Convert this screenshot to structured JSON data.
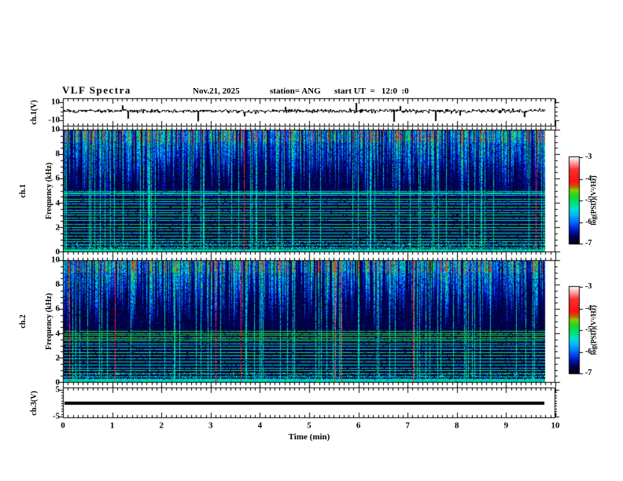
{
  "header": {
    "title": "VLF Spectra",
    "date": "Nov.21, 2025",
    "station": "station= ANG",
    "start_ut": "start UT  =   12:0  :0"
  },
  "x_axis": {
    "title": "Time (min)",
    "tick_labels": [
      "0",
      "1",
      "2",
      "3",
      "4",
      "5",
      "6",
      "7",
      "8",
      "9",
      "10"
    ]
  },
  "panels": {
    "ch1": {
      "label": "ch.1(V)",
      "tick_labels": [
        "10",
        "-10"
      ]
    },
    "spec1": {
      "label_channel": "ch.1",
      "label_axis": "Frequency (kHz)",
      "tick_labels": [
        "10",
        "8",
        "6",
        "4",
        "2",
        "0"
      ]
    },
    "spec2": {
      "label_channel": "ch.2",
      "label_axis": "Frequency (kHz)",
      "tick_labels": [
        "10",
        "8",
        "6",
        "4",
        "2",
        "0"
      ]
    },
    "ch3": {
      "label": "ch.3(V)",
      "tick_labels": [
        "5",
        "-5"
      ]
    }
  },
  "colorbar": {
    "label": "log(PSD)(V²/Hz)",
    "tick_labels": [
      "-3",
      "-4",
      "-5",
      "-6",
      "-7"
    ],
    "range": [
      -7,
      -3
    ],
    "positions": [
      0,
      0.08,
      0.16,
      0.24,
      0.33,
      0.4,
      0.48,
      0.56,
      0.62,
      0.66,
      0.72,
      0.86,
      0.93,
      1.0
    ],
    "colors": [
      "#000010",
      "#000050",
      "#0018c8",
      "#0060ff",
      "#00b4ff",
      "#00e0d0",
      "#00e060",
      "#20d820",
      "#88cc00",
      "#d05800",
      "#ff1010",
      "#ff3030",
      "#ff9aa0",
      "#ffffff"
    ]
  },
  "chart_data": [
    {
      "type": "line",
      "name": "ch.1 raw signal",
      "ylabel": "ch.1(V)",
      "y_ticks": [
        10,
        -10
      ],
      "x_range_min": [
        0,
        10
      ],
      "data_end_min": 9.8,
      "description": "noisy waveform trace centered on 0 V with sparse impulsive spikes of a few volts"
    },
    {
      "type": "heatmap",
      "name": "ch.1 spectrogram",
      "ylabel": "Frequency (kHz)",
      "y_range_khz": [
        0,
        10
      ],
      "x_range_min": [
        0,
        10
      ],
      "data_end_min": 9.8,
      "colorbar": {
        "label": "log(PSD)(V²/Hz)",
        "range": [
          -7,
          -3
        ],
        "tick_values": [
          -3,
          -4,
          -5,
          -6,
          -7
        ]
      },
      "features": {
        "impulsive_streaks": "dense vertical sferic streaks strongest between 5 and 10 kHz, green-yellow cores with occasional full-height red lines",
        "horizontal_lines": [
          {
            "khz": 5.0,
            "v": 0.44
          },
          {
            "khz": 4.9,
            "v": 0.48
          },
          {
            "khz": 4.8,
            "v": 0.44
          },
          {
            "khz": 4.7,
            "v": 0.4
          },
          {
            "khz": 4.35,
            "v": 0.56
          },
          {
            "khz": 4.15,
            "v": 0.42
          },
          {
            "khz": 3.95,
            "v": 0.46
          },
          {
            "khz": 3.7,
            "v": 0.56
          },
          {
            "khz": 3.45,
            "v": 0.42
          },
          {
            "khz": 3.25,
            "v": 0.56
          },
          {
            "khz": 3.05,
            "v": 0.46
          },
          {
            "khz": 2.85,
            "v": 0.56
          },
          {
            "khz": 2.6,
            "v": 0.46
          },
          {
            "khz": 2.3,
            "v": 0.56
          },
          {
            "khz": 2.05,
            "v": 0.46
          },
          {
            "khz": 1.85,
            "v": 0.56
          },
          {
            "khz": 1.6,
            "v": 0.46
          },
          {
            "khz": 1.35,
            "v": 0.56
          },
          {
            "khz": 1.1,
            "v": 0.46
          },
          {
            "khz": 0.9,
            "v": 0.52
          },
          {
            "khz": 0.65,
            "v": 0.46
          },
          {
            "khz": 0.4,
            "v": 0.52
          }
        ],
        "bottom_noise_band_khz": [
          0,
          0.3
        ]
      }
    },
    {
      "type": "heatmap",
      "name": "ch.2 spectrogram",
      "ylabel": "Frequency (kHz)",
      "y_range_khz": [
        0,
        10
      ],
      "x_range_min": [
        0,
        10
      ],
      "data_end_min": 9.8,
      "colorbar": {
        "label": "log(PSD)(V²/Hz)",
        "range": [
          -7,
          -3
        ],
        "tick_values": [
          -3,
          -4,
          -5,
          -6,
          -7
        ]
      },
      "features": {
        "impulsive_streaks": "dense vertical sferic streaks strongest between 4 and 10 kHz, occasional full-height red and green lines",
        "horizontal_lines": [
          {
            "khz": 4.2,
            "v": 0.56
          },
          {
            "khz": 4.05,
            "v": 0.6
          },
          {
            "khz": 3.9,
            "v": 0.56
          },
          {
            "khz": 3.75,
            "v": 0.6
          },
          {
            "khz": 3.6,
            "v": 0.56
          },
          {
            "khz": 3.45,
            "v": 0.56
          },
          {
            "khz": 3.2,
            "v": 0.46
          },
          {
            "khz": 3.0,
            "v": 0.52
          },
          {
            "khz": 2.75,
            "v": 0.46
          },
          {
            "khz": 2.5,
            "v": 0.52
          },
          {
            "khz": 2.25,
            "v": 0.56
          },
          {
            "khz": 2.0,
            "v": 0.46
          },
          {
            "khz": 1.75,
            "v": 0.52
          },
          {
            "khz": 1.5,
            "v": 0.46
          },
          {
            "khz": 1.25,
            "v": 0.52
          },
          {
            "khz": 1.0,
            "v": 0.46
          },
          {
            "khz": 0.75,
            "v": 0.52
          },
          {
            "khz": 0.5,
            "v": 0.46
          },
          {
            "khz": 0.3,
            "v": 0.42
          }
        ],
        "bottom_noise_band_khz": [
          0,
          0.3
        ]
      }
    },
    {
      "type": "line",
      "name": "ch.3 raw signal",
      "ylabel": "ch.3(V)",
      "y_ticks": [
        5,
        -5
      ],
      "x_range_min": [
        0,
        10
      ],
      "data_end_min": 9.8,
      "constant_value": 0,
      "description": "flat thick trace at 0 V for the full record"
    }
  ]
}
